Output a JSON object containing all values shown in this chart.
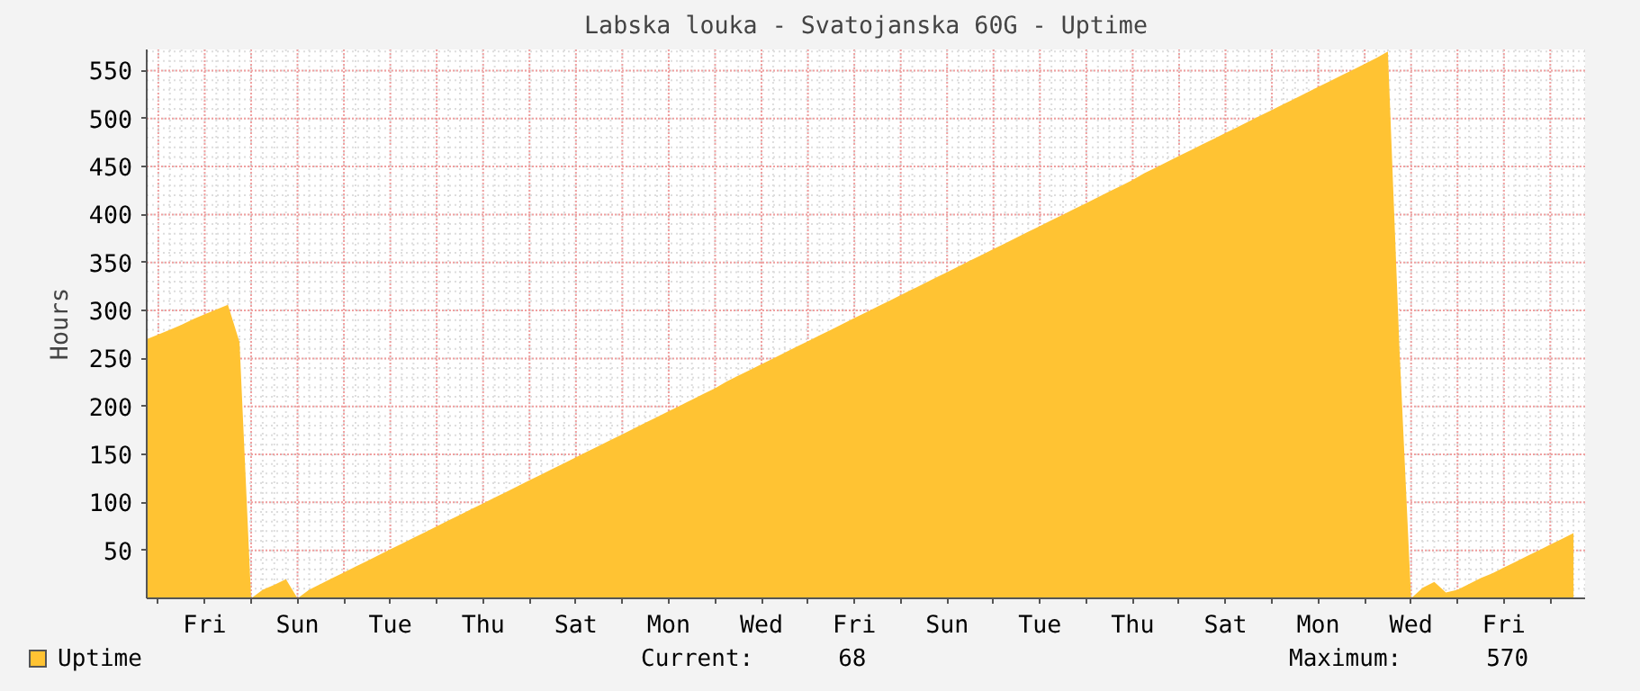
{
  "chart_data": {
    "type": "area",
    "title": "Labska louka - Svatojanska 60G - Uptime",
    "ylabel": "Hours",
    "categories": [
      null,
      null,
      null,
      null,
      null,
      "Fri",
      null,
      null,
      null,
      null,
      null,
      null,
      null,
      "Sun",
      null,
      null,
      null,
      null,
      null,
      null,
      null,
      "Tue",
      null,
      null,
      null,
      null,
      null,
      null,
      null,
      "Thu",
      null,
      null,
      null,
      null,
      null,
      null,
      null,
      "Sat",
      null,
      null,
      null,
      null,
      null,
      null,
      null,
      "Mon",
      null,
      null,
      null,
      null,
      null,
      null,
      null,
      "Wed",
      null,
      null,
      null,
      null,
      null,
      null,
      null,
      "Fri",
      null,
      null,
      null,
      null,
      null,
      null,
      null,
      "Sun",
      null,
      null,
      null,
      null,
      null,
      null,
      null,
      "Tue",
      null,
      null,
      null,
      null,
      null,
      null,
      null,
      "Thu",
      null,
      null,
      null,
      null,
      null,
      null,
      null,
      "Sat",
      null,
      null,
      null,
      null,
      null,
      null,
      null,
      "Mon",
      null,
      null,
      null,
      null,
      null,
      null,
      null,
      "Wed",
      null,
      null,
      null,
      null,
      null,
      null,
      null,
      "Fri",
      null,
      null,
      null,
      null,
      null,
      null,
      null
    ],
    "series": [
      {
        "name": "Uptime",
        "color": "#ffc333",
        "values": [
          270,
          275,
          280,
          285,
          291,
          296,
          301,
          306,
          267,
          0,
          9,
          14,
          20,
          0,
          9,
          15,
          21,
          27,
          33,
          39,
          45,
          51,
          57,
          63,
          69,
          75,
          81,
          87,
          93,
          99,
          105,
          111,
          117,
          123,
          129,
          135,
          141,
          147,
          153,
          159,
          165,
          171,
          177,
          183,
          189,
          195,
          201,
          207,
          213,
          219,
          226,
          232,
          238,
          244,
          250,
          256,
          262,
          268,
          274,
          280,
          286,
          292,
          298,
          304,
          310,
          316,
          322,
          328,
          334,
          340,
          346,
          352,
          358,
          364,
          370,
          376,
          382,
          388,
          394,
          400,
          406,
          412,
          418,
          424,
          430,
          436,
          443,
          449,
          455,
          461,
          467,
          473,
          479,
          485,
          491,
          497,
          503,
          509,
          515,
          521,
          527,
          533,
          539,
          545,
          551,
          557,
          563,
          570,
          259,
          0,
          11,
          17,
          6,
          9,
          15,
          21,
          26,
          32,
          38,
          44,
          50,
          56,
          62,
          68,
          null
        ]
      }
    ],
    "ylim": [
      0,
      572
    ],
    "yticks": [
      50,
      100,
      150,
      200,
      250,
      300,
      350,
      400,
      450,
      500,
      550
    ],
    "grid": true,
    "legend": "bottom left",
    "annotations": [
      "Current:      68",
      "Maximum:      570"
    ]
  }
}
